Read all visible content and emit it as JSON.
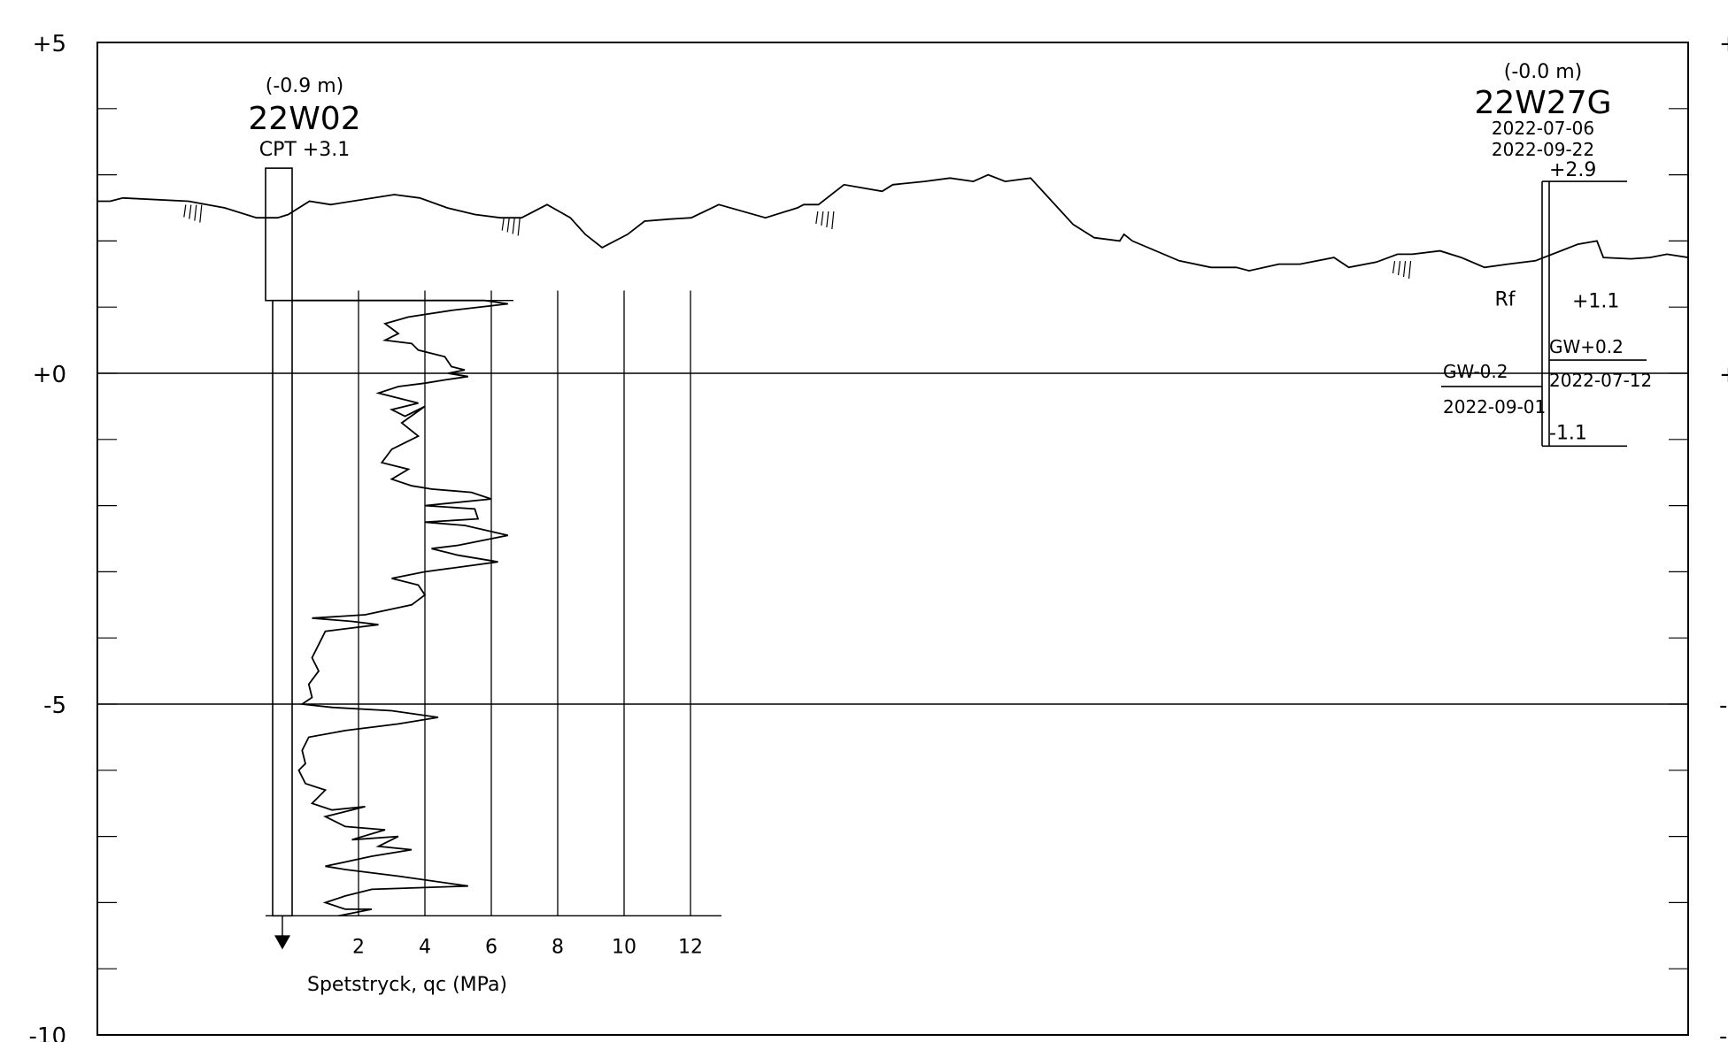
{
  "elevation_axis": {
    "ticks": [
      {
        "value": 5,
        "label": "+5"
      },
      {
        "value": 0,
        "label": "+0"
      },
      {
        "value": -5,
        "label": "-5"
      },
      {
        "value": -10,
        "label": "-10"
      }
    ],
    "range": [
      -10,
      5
    ],
    "minor_step": 1
  },
  "ground_surface": {
    "profile": [
      [
        0.0,
        2.6
      ],
      [
        0.6,
        2.6
      ],
      [
        1.2,
        2.65
      ],
      [
        4.3,
        2.6
      ],
      [
        6.0,
        2.5
      ],
      [
        7.5,
        2.35
      ],
      [
        8.5,
        2.35
      ],
      [
        9.0,
        2.4
      ],
      [
        10.0,
        2.6
      ],
      [
        11.0,
        2.55
      ],
      [
        14.0,
        2.7
      ],
      [
        15.2,
        2.65
      ],
      [
        16.5,
        2.5
      ],
      [
        17.8,
        2.4
      ],
      [
        19.0,
        2.35
      ],
      [
        20.0,
        2.35
      ],
      [
        21.2,
        2.55
      ],
      [
        22.3,
        2.35
      ],
      [
        23.0,
        2.1
      ],
      [
        23.8,
        1.9
      ],
      [
        25.0,
        2.1
      ],
      [
        25.8,
        2.3
      ],
      [
        27.0,
        2.33
      ],
      [
        28.0,
        2.35
      ],
      [
        29.3,
        2.55
      ],
      [
        31.5,
        2.35
      ],
      [
        33.0,
        2.5
      ],
      [
        33.3,
        2.55
      ],
      [
        34.0,
        2.55
      ],
      [
        35.2,
        2.85
      ],
      [
        37.0,
        2.75
      ],
      [
        37.5,
        2.85
      ],
      [
        39.0,
        2.9
      ],
      [
        40.2,
        2.95
      ],
      [
        41.3,
        2.9
      ],
      [
        42.0,
        3.0
      ],
      [
        42.8,
        2.9
      ],
      [
        44.0,
        2.95
      ],
      [
        45.0,
        2.6
      ],
      [
        46.0,
        2.25
      ],
      [
        47.0,
        2.05
      ],
      [
        48.2,
        2.0
      ],
      [
        48.4,
        2.1
      ],
      [
        48.8,
        2.0
      ],
      [
        51.0,
        1.7
      ],
      [
        52.5,
        1.6
      ],
      [
        53.7,
        1.6
      ],
      [
        54.3,
        1.55
      ],
      [
        55.7,
        1.65
      ],
      [
        56.7,
        1.65
      ],
      [
        58.3,
        1.75
      ],
      [
        59.0,
        1.6
      ],
      [
        60.3,
        1.68
      ],
      [
        61.3,
        1.8
      ],
      [
        62.0,
        1.8
      ],
      [
        63.3,
        1.85
      ],
      [
        64.3,
        1.75
      ],
      [
        65.4,
        1.6
      ],
      [
        66.5,
        1.65
      ],
      [
        67.8,
        1.7
      ],
      [
        69.0,
        1.85
      ],
      [
        69.8,
        1.95
      ],
      [
        70.7,
        2.0
      ],
      [
        71.0,
        1.75
      ],
      [
        72.3,
        1.73
      ],
      [
        73.2,
        1.75
      ],
      [
        74.0,
        1.8
      ],
      [
        75.0,
        1.75
      ]
    ],
    "tick_marks": [
      [
        4.5,
        2.6
      ],
      [
        19.5,
        2.4
      ],
      [
        34.3,
        2.5
      ],
      [
        61.5,
        1.75
      ]
    ]
  },
  "boreholes": [
    {
      "id": "22W02",
      "offset_label": "(-0.9 m)",
      "method_label": "CPT  +3.1",
      "top_elevation": 3.1,
      "test_start_elevation": 1.1,
      "bottom_elevation": -8.2,
      "x_position": 8.6,
      "cpt": {
        "xlabel": "Spetstryck, qc (MPa)",
        "x_ticks": [
          2,
          4,
          6,
          8,
          10,
          12
        ],
        "x_range": [
          0,
          12
        ],
        "profile": [
          [
            0.0,
            1.1
          ],
          [
            5.8,
            1.1
          ],
          [
            6.5,
            1.05
          ],
          [
            4.8,
            0.95
          ],
          [
            3.5,
            0.85
          ],
          [
            2.8,
            0.75
          ],
          [
            3.2,
            0.6
          ],
          [
            2.8,
            0.5
          ],
          [
            3.6,
            0.45
          ],
          [
            3.8,
            0.35
          ],
          [
            4.6,
            0.25
          ],
          [
            4.8,
            0.1
          ],
          [
            5.2,
            0.05
          ],
          [
            4.7,
            0.0
          ],
          [
            5.3,
            -0.05
          ],
          [
            4.6,
            -0.1
          ],
          [
            4.0,
            -0.15
          ],
          [
            3.2,
            -0.2
          ],
          [
            2.6,
            -0.3
          ],
          [
            3.8,
            -0.45
          ],
          [
            3.0,
            -0.55
          ],
          [
            3.4,
            -0.65
          ],
          [
            4.0,
            -0.5
          ],
          [
            3.3,
            -0.75
          ],
          [
            3.8,
            -0.95
          ],
          [
            3.0,
            -1.15
          ],
          [
            2.7,
            -1.35
          ],
          [
            3.5,
            -1.45
          ],
          [
            3.0,
            -1.6
          ],
          [
            3.6,
            -1.7
          ],
          [
            4.2,
            -1.75
          ],
          [
            5.4,
            -1.8
          ],
          [
            6.0,
            -1.9
          ],
          [
            4.0,
            -2.0
          ],
          [
            5.5,
            -2.05
          ],
          [
            5.6,
            -2.2
          ],
          [
            4.0,
            -2.25
          ],
          [
            5.2,
            -2.3
          ],
          [
            6.5,
            -2.45
          ],
          [
            5.0,
            -2.6
          ],
          [
            4.2,
            -2.65
          ],
          [
            5.0,
            -2.75
          ],
          [
            6.2,
            -2.85
          ],
          [
            4.0,
            -3.0
          ],
          [
            3.0,
            -3.1
          ],
          [
            3.8,
            -3.2
          ],
          [
            4.0,
            -3.35
          ],
          [
            3.6,
            -3.5
          ],
          [
            2.2,
            -3.65
          ],
          [
            0.6,
            -3.7
          ],
          [
            1.8,
            -3.75
          ],
          [
            2.6,
            -3.8
          ],
          [
            1.0,
            -3.9
          ],
          [
            0.8,
            -4.1
          ],
          [
            0.6,
            -4.3
          ],
          [
            0.8,
            -4.5
          ],
          [
            0.5,
            -4.7
          ],
          [
            0.6,
            -4.9
          ],
          [
            0.3,
            -5.0
          ],
          [
            1.2,
            -5.05
          ],
          [
            3.0,
            -5.1
          ],
          [
            4.4,
            -5.2
          ],
          [
            3.2,
            -5.3
          ],
          [
            1.6,
            -5.4
          ],
          [
            0.5,
            -5.5
          ],
          [
            0.3,
            -5.7
          ],
          [
            0.4,
            -5.9
          ],
          [
            0.2,
            -6.0
          ],
          [
            0.4,
            -6.2
          ],
          [
            1.0,
            -6.3
          ],
          [
            0.6,
            -6.5
          ],
          [
            1.2,
            -6.6
          ],
          [
            2.2,
            -6.55
          ],
          [
            1.0,
            -6.7
          ],
          [
            1.6,
            -6.85
          ],
          [
            2.8,
            -6.9
          ],
          [
            1.8,
            -7.05
          ],
          [
            3.2,
            -7.0
          ],
          [
            2.6,
            -7.15
          ],
          [
            3.6,
            -7.2
          ],
          [
            2.4,
            -7.3
          ],
          [
            1.0,
            -7.45
          ],
          [
            1.6,
            -7.5
          ],
          [
            3.2,
            -7.6
          ],
          [
            5.3,
            -7.75
          ],
          [
            2.4,
            -7.8
          ],
          [
            1.6,
            -7.9
          ],
          [
            1.0,
            -8.0
          ],
          [
            1.6,
            -8.1
          ],
          [
            2.4,
            -8.1
          ],
          [
            1.4,
            -8.2
          ]
        ]
      }
    },
    {
      "id": "22W27G",
      "offset_label": "(-0.0 m)",
      "dates": [
        "2022-07-06",
        "2022-09-22"
      ],
      "top_label": "+2.9",
      "surface_label": "+1.1",
      "bottom_label": "-1.1",
      "soil_label": "Rf",
      "top_elevation": 2.9,
      "surface_elevation": 1.1,
      "bottom_elevation": -1.1,
      "x_position": 65.0,
      "groundwater": [
        {
          "label": "GW-0.2",
          "date": "2022-09-01",
          "elevation": -0.2,
          "side": "left"
        },
        {
          "label": "GW+0.2",
          "date": "2022-07-12",
          "elevation": 0.2,
          "side": "right"
        }
      ]
    }
  ]
}
